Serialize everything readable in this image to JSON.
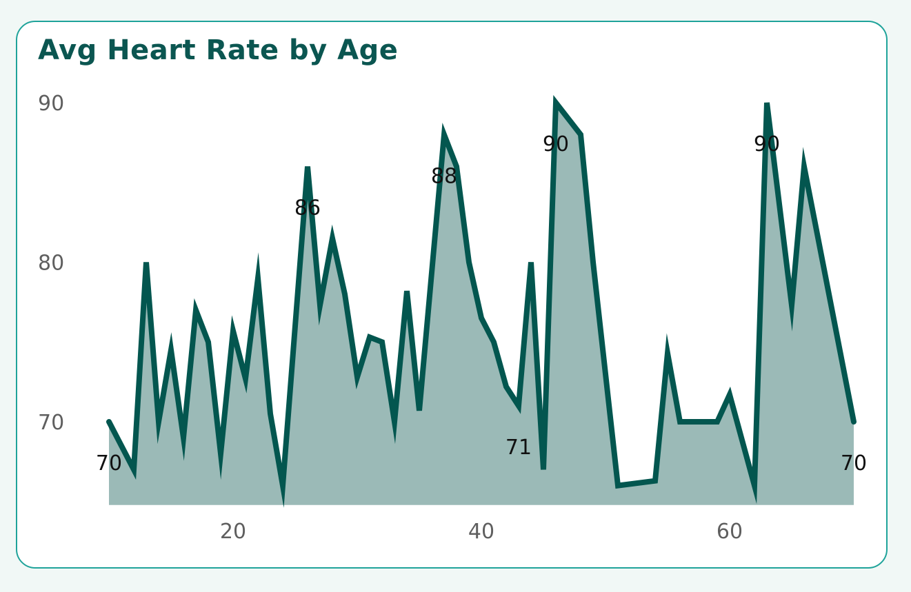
{
  "chart_data": {
    "type": "area",
    "title": "Avg Heart Rate by Age",
    "xlabel": "",
    "ylabel": "",
    "x": [
      10,
      12,
      13,
      14,
      15,
      16,
      17,
      18,
      19,
      20,
      21,
      22,
      23,
      24,
      26,
      27,
      28,
      29,
      30,
      31,
      32,
      33,
      34,
      35,
      37,
      38,
      39,
      40,
      41,
      42,
      43,
      44,
      45,
      46,
      48,
      49,
      51,
      54,
      55,
      56,
      59,
      60,
      62,
      63,
      65,
      66,
      70
    ],
    "values": [
      70,
      67,
      80,
      70,
      74.5,
      69,
      77,
      75,
      68,
      75.7,
      72.7,
      79,
      70.5,
      66,
      86,
      77.3,
      81.5,
      78,
      72.8,
      75.3,
      75,
      70,
      78.2,
      70.7,
      88,
      86,
      80,
      76.5,
      75,
      72.2,
      71,
      80,
      67,
      90,
      88,
      80,
      66,
      66.3,
      74.3,
      70,
      70,
      71.7,
      66,
      90,
      77.3,
      86,
      70
    ],
    "xlim": [
      10,
      70
    ],
    "ylim": [
      65,
      90
    ],
    "x_ticks": [
      "20",
      "40",
      "60"
    ],
    "y_ticks": [
      "70",
      "80",
      "90"
    ],
    "grid": false,
    "legend": "none",
    "data_labels": [
      {
        "x": 10,
        "value": 70,
        "text": "70"
      },
      {
        "x": 26,
        "value": 86,
        "text": "86"
      },
      {
        "x": 37,
        "value": 88,
        "text": "88"
      },
      {
        "x": 43,
        "value": 71,
        "text": "71"
      },
      {
        "x": 46,
        "value": 90,
        "text": "90"
      },
      {
        "x": 63,
        "value": 90,
        "text": "90"
      },
      {
        "x": 70,
        "value": 70,
        "text": "70"
      }
    ],
    "colors": {
      "line": "#03564f",
      "fill": "#9bbab7"
    }
  }
}
